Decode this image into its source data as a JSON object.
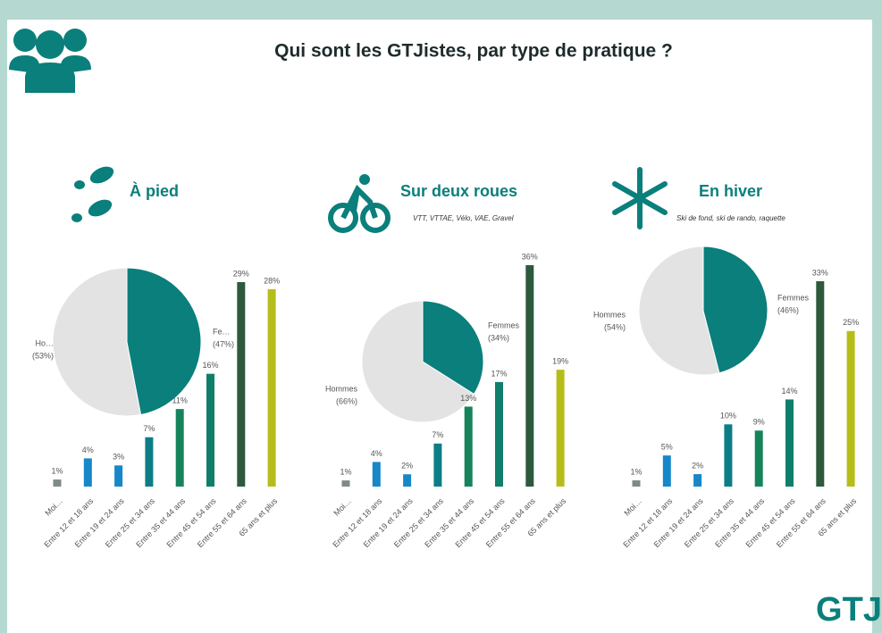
{
  "title": "Qui sont les GTJistes, par type de pratique ?",
  "logo": "GTJ",
  "chart_data": [
    {
      "type": "pie",
      "title": "À pied",
      "categories": [
        "Ho…",
        "Fe…"
      ],
      "values": [
        53,
        47
      ],
      "value_labels": [
        "(53%)",
        "(47%)"
      ],
      "colors": [
        "#e3e3e3",
        "#0a7f7b"
      ]
    },
    {
      "type": "bar",
      "categories": [
        "Moi…",
        "Entre 12 et 18 ans",
        "Entre 19 et 24 ans",
        "Entre 25 et 34 ans",
        "Entre 35 et 44 ans",
        "Entre 45 et 54 ans",
        "Entre 55 et 64 ans",
        "65 ans et plus"
      ],
      "values": [
        1,
        4,
        3,
        7,
        11,
        16,
        29,
        28
      ],
      "value_labels": [
        "1%",
        "4%",
        "3%",
        "7%",
        "11%",
        "16%",
        "29%",
        "28%"
      ],
      "colors": [
        "#7f8a84",
        "#1787c8",
        "#1787c8",
        "#0d7d86",
        "#16845a",
        "#0f7f6c",
        "#2d5a3b",
        "#b6bd1a"
      ]
    },
    {
      "type": "pie",
      "title": "Sur deux roues",
      "subtitle": "VTT, VTTAE, Vélo, VAE, Gravel",
      "categories": [
        "Hommes",
        "Femmes"
      ],
      "values": [
        66,
        34
      ],
      "value_labels": [
        "(66%)",
        "(34%)"
      ],
      "colors": [
        "#e3e3e3",
        "#0a7f7b"
      ]
    },
    {
      "type": "bar",
      "categories": [
        "Moi…",
        "Entre 12 et 18 ans",
        "Entre 19 et 24 ans",
        "Entre 25 et 34 ans",
        "Entre 35 et 44 ans",
        "Entre 45 et 54 ans",
        "Entre 55 et 64 ans",
        "65 ans et plus"
      ],
      "values": [
        1,
        4,
        2,
        7,
        13,
        17,
        36,
        19
      ],
      "value_labels": [
        "1%",
        "4%",
        "2%",
        "7%",
        "13%",
        "17%",
        "36%",
        "19%"
      ],
      "colors": [
        "#7f8a84",
        "#1787c8",
        "#1787c8",
        "#0d7d86",
        "#16845a",
        "#0f7f6c",
        "#2d5a3b",
        "#b6bd1a"
      ]
    },
    {
      "type": "pie",
      "title": "En hiver",
      "subtitle": "Ski de fond, ski de rando, raquette",
      "categories": [
        "Hommes",
        "Femmes"
      ],
      "values": [
        54,
        46
      ],
      "value_labels": [
        "(54%)",
        "(46%)"
      ],
      "colors": [
        "#e3e3e3",
        "#0a7f7b"
      ]
    },
    {
      "type": "bar",
      "categories": [
        "Moi…",
        "Entre 12 et 18 ans",
        "Entre 19 et 24 ans",
        "Entre 25 et 34 ans",
        "Entre 35 et 44 ans",
        "Entre 45 et 54 ans",
        "Entre 55 et 64 ans",
        "65 ans et plus"
      ],
      "values": [
        1,
        5,
        2,
        10,
        9,
        14,
        33,
        25
      ],
      "value_labels": [
        "1%",
        "5%",
        "2%",
        "10%",
        "9%",
        "14%",
        "33%",
        "25%"
      ],
      "colors": [
        "#7f8a84",
        "#1787c8",
        "#1787c8",
        "#0d7d86",
        "#16845a",
        "#0f7f6c",
        "#2d5a3b",
        "#b6bd1a"
      ]
    }
  ]
}
